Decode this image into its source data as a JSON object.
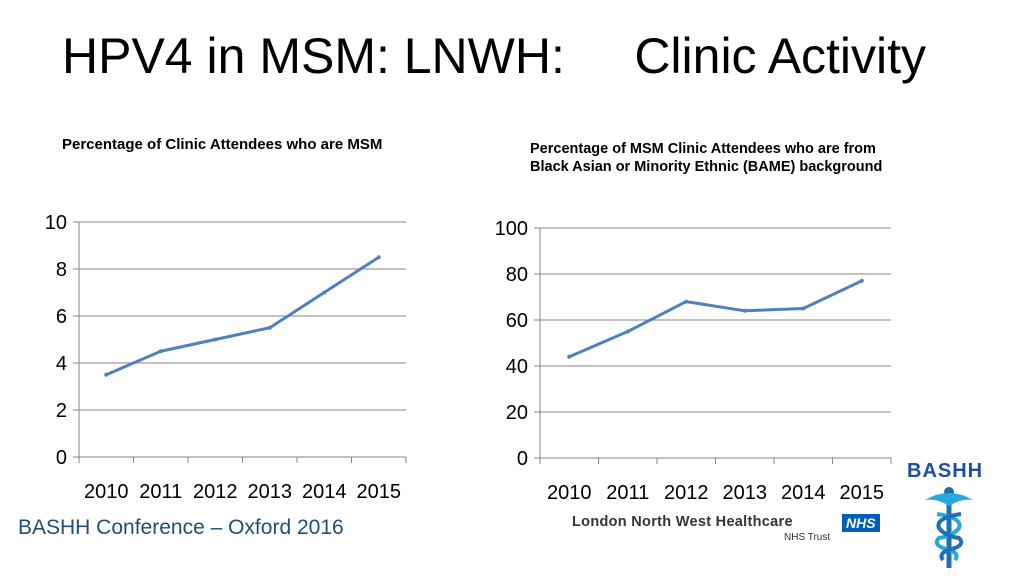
{
  "title": "HPV4 in MSM: LNWH:     Clinic Activity",
  "footer": "BASHH Conference – Oxford 2016",
  "logos": {
    "lnwh_name": "London North West Healthcare",
    "nhs": "NHS",
    "trust": "NHS Trust",
    "bashh": "BASHH"
  },
  "colors": {
    "line": "#4f81bd",
    "grid": "#868686",
    "footer": "#1f4e79"
  },
  "chart_data": [
    {
      "type": "line",
      "title": "Percentage of Clinic Attendees who are MSM",
      "categories": [
        "2010",
        "2011",
        "2012",
        "2013",
        "2014",
        "2015"
      ],
      "values": [
        3.5,
        4.5,
        5.0,
        5.5,
        7.0,
        8.5
      ],
      "ylim": [
        0,
        10
      ],
      "yticks": [
        "0",
        "2",
        "4",
        "6",
        "8",
        "10"
      ],
      "xlabel": "",
      "ylabel": "",
      "grid": true,
      "legend": "none"
    },
    {
      "type": "line",
      "title": "Percentage of MSM Clinic Attendees who are from Black Asian or Minority Ethnic (BAME) background",
      "categories": [
        "2010",
        "2011",
        "2012",
        "2013",
        "2014",
        "2015"
      ],
      "values": [
        44,
        55,
        68,
        64,
        65,
        77
      ],
      "ylim": [
        0,
        100
      ],
      "yticks": [
        "0",
        "20",
        "40",
        "60",
        "80",
        "100"
      ],
      "xlabel": "",
      "ylabel": "",
      "grid": true,
      "legend": "none"
    }
  ]
}
